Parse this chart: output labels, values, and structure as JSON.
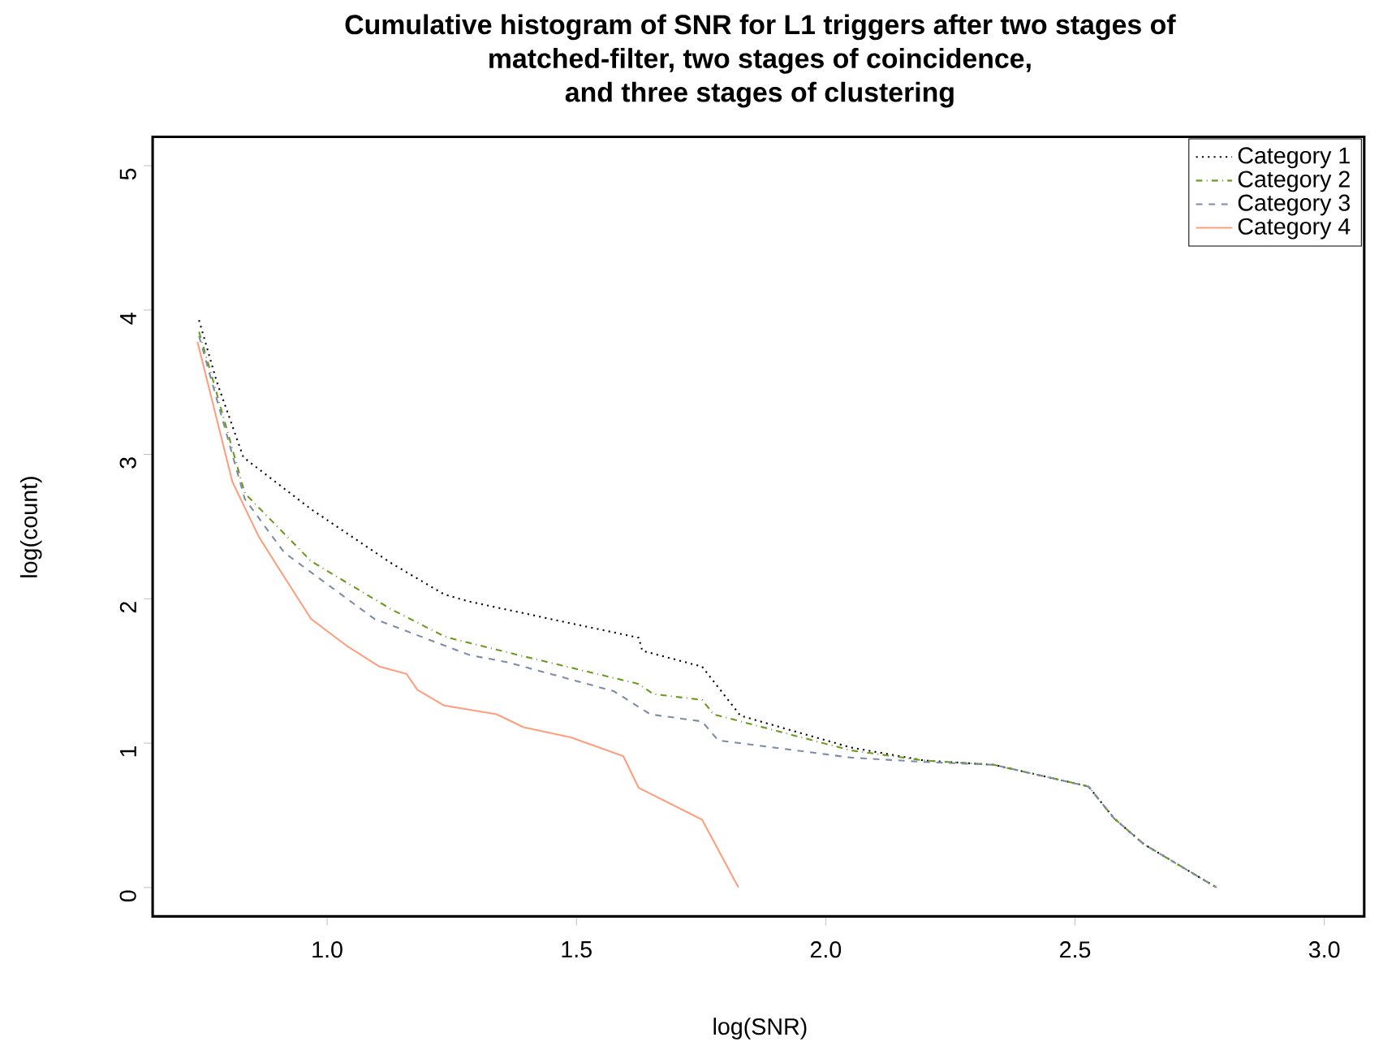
{
  "chart_data": {
    "type": "line",
    "title": "Cumulative histogram of SNR for L1 triggers after two stages of\nmatched-filter, two stages of coincidence,\nand three stages of clustering",
    "xlabel": "log(SNR)",
    "ylabel": "log(count)",
    "xlim": [
      0.65,
      3.08
    ],
    "ylim": [
      -0.2,
      5.2
    ],
    "xticks": [
      {
        "value": 1,
        "label": "1.0"
      },
      {
        "value": 1.5,
        "label": "1.5"
      },
      {
        "value": 2,
        "label": "2.0"
      },
      {
        "value": 2.5,
        "label": "2.5"
      },
      {
        "value": 3,
        "label": "3.0"
      }
    ],
    "yticks": [
      0,
      1,
      2,
      3,
      4,
      5
    ],
    "legend": "top right",
    "grid": false,
    "marker": "none",
    "series": [
      {
        "name": "Category 1",
        "color": "#000000",
        "line_style": "dotted",
        "x": [
          0.743,
          0.778,
          0.832,
          0.968,
          1.127,
          1.235,
          1.286,
          1.448,
          1.625,
          1.632,
          1.752,
          1.829,
          2.05,
          2.197,
          2.337,
          2.527,
          2.578,
          2.638,
          2.784
        ],
        "values": [
          3.93,
          3.51,
          2.98,
          2.62,
          2.25,
          2.03,
          1.98,
          1.86,
          1.73,
          1.64,
          1.53,
          1.19,
          0.97,
          0.88,
          0.85,
          0.7,
          0.48,
          0.3,
          0.0
        ]
      },
      {
        "name": "Category 2",
        "color": "#6b9a1e",
        "line_style": "dashdot",
        "x": [
          0.743,
          0.778,
          0.835,
          0.968,
          1.127,
          1.235,
          1.244,
          1.384,
          1.625,
          1.654,
          1.752,
          1.775,
          2.05,
          2.197,
          2.337,
          2.527,
          2.578,
          2.638,
          2.784
        ],
        "values": [
          3.85,
          3.43,
          2.73,
          2.26,
          1.93,
          1.74,
          1.73,
          1.61,
          1.41,
          1.34,
          1.3,
          1.2,
          0.95,
          0.88,
          0.85,
          0.7,
          0.48,
          0.3,
          0.0
        ]
      },
      {
        "name": "Category 3",
        "color": "#7c8ba6",
        "line_style": "dashed",
        "x": [
          0.743,
          0.778,
          0.835,
          0.914,
          1.095,
          1.286,
          1.362,
          1.575,
          1.648,
          1.752,
          1.784,
          2.05,
          2.197,
          2.337,
          2.527,
          2.578,
          2.638,
          2.784
        ],
        "values": [
          3.82,
          3.39,
          2.69,
          2.32,
          1.86,
          1.61,
          1.56,
          1.36,
          1.2,
          1.15,
          1.02,
          0.9,
          0.87,
          0.85,
          0.7,
          0.48,
          0.3,
          0.0
        ]
      },
      {
        "name": "Category 4",
        "color": "#ff9e7e",
        "line_style": "solid",
        "x": [
          0.74,
          0.81,
          0.863,
          0.905,
          0.968,
          1.041,
          1.105,
          1.159,
          1.181,
          1.235,
          1.34,
          1.394,
          1.489,
          1.594,
          1.625,
          1.752,
          1.825
        ],
        "values": [
          3.78,
          2.81,
          2.43,
          2.2,
          1.86,
          1.67,
          1.53,
          1.48,
          1.37,
          1.26,
          1.2,
          1.11,
          1.04,
          0.91,
          0.69,
          0.47,
          0.0
        ]
      }
    ]
  }
}
